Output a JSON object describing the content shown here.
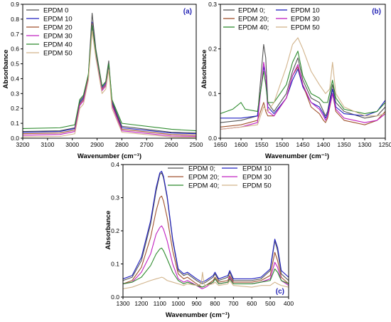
{
  "chart_data": [
    {
      "type": "line",
      "panel_label": "(a)",
      "xlabel": "Wavenumber (cm⁻¹)",
      "ylabel": "Absorbance",
      "xlim": [
        3200,
        2500
      ],
      "ylim": [
        0,
        0.9
      ],
      "xticks": [
        3200,
        3100,
        3000,
        2900,
        2800,
        2700,
        2600,
        2500
      ],
      "yticks": [
        0.0,
        0.1,
        0.2,
        0.3,
        0.4,
        0.5,
        0.6,
        0.7,
        0.8,
        0.9
      ],
      "legend_position": "top-left",
      "legend": [
        "EPDM 0",
        "EPDM 10",
        "EPDM 20",
        "EPDM 30",
        "EPDM 40",
        "EPDM 50"
      ],
      "series": [
        {
          "name": "EPDM 0",
          "color": "#555555",
          "x": [
            3200,
            3050,
            2990,
            2970,
            2955,
            2935,
            2920,
            2905,
            2880,
            2865,
            2853,
            2840,
            2800,
            2600,
            2500
          ],
          "y": [
            0.045,
            0.05,
            0.07,
            0.25,
            0.28,
            0.43,
            0.84,
            0.6,
            0.35,
            0.38,
            0.52,
            0.25,
            0.08,
            0.04,
            0.035
          ]
        },
        {
          "name": "EPDM 10",
          "color": "#2020c0",
          "x": [
            3200,
            3050,
            2990,
            2970,
            2955,
            2935,
            2920,
            2905,
            2880,
            2865,
            2853,
            2840,
            2800,
            2600,
            2500
          ],
          "y": [
            0.04,
            0.045,
            0.065,
            0.24,
            0.27,
            0.42,
            0.78,
            0.58,
            0.34,
            0.37,
            0.5,
            0.24,
            0.07,
            0.035,
            0.03
          ]
        },
        {
          "name": "EPDM 20",
          "color": "#a0522d",
          "x": [
            3200,
            3050,
            2990,
            2970,
            2955,
            2935,
            2920,
            2905,
            2880,
            2865,
            2853,
            2840,
            2800,
            2600,
            2500
          ],
          "y": [
            0.03,
            0.035,
            0.055,
            0.23,
            0.26,
            0.41,
            0.77,
            0.57,
            0.33,
            0.36,
            0.49,
            0.23,
            0.06,
            0.025,
            0.02
          ]
        },
        {
          "name": "EPDM 30",
          "color": "#c020c0",
          "x": [
            3200,
            3050,
            2990,
            2970,
            2955,
            2935,
            2920,
            2905,
            2880,
            2865,
            2853,
            2840,
            2800,
            2600,
            2500
          ],
          "y": [
            0.02,
            0.025,
            0.045,
            0.22,
            0.25,
            0.4,
            0.76,
            0.56,
            0.32,
            0.35,
            0.48,
            0.22,
            0.05,
            0.015,
            0.012
          ]
        },
        {
          "name": "EPDM 40",
          "color": "#2e8b2e",
          "x": [
            3200,
            3050,
            2990,
            2970,
            2955,
            2935,
            2920,
            2905,
            2880,
            2865,
            2853,
            2840,
            2800,
            2600,
            2500
          ],
          "y": [
            0.065,
            0.07,
            0.09,
            0.26,
            0.29,
            0.43,
            0.76,
            0.58,
            0.35,
            0.38,
            0.5,
            0.26,
            0.1,
            0.06,
            0.05
          ]
        },
        {
          "name": "EPDM 50",
          "color": "#d2b48c",
          "x": [
            3200,
            3050,
            2990,
            2970,
            2955,
            2935,
            2920,
            2905,
            2880,
            2865,
            2853,
            2840,
            2800,
            2600,
            2500
          ],
          "y": [
            0.01,
            0.012,
            0.03,
            0.2,
            0.23,
            0.39,
            0.72,
            0.54,
            0.3,
            0.33,
            0.46,
            0.2,
            0.04,
            0.008,
            0.005
          ]
        }
      ]
    },
    {
      "type": "line",
      "panel_label": "(b)",
      "xlabel": "Wavenumber (cm⁻¹)",
      "ylabel": "Absorbance",
      "xlim": [
        1650,
        1250
      ],
      "ylim": [
        0,
        0.3
      ],
      "xticks": [
        1650,
        1600,
        1550,
        1500,
        1450,
        1400,
        1350,
        1300,
        1250
      ],
      "yticks": [
        0.0,
        0.1,
        0.2,
        0.3
      ],
      "legend_position": "top-left",
      "legend": [
        "EPDM 0;",
        "EPDM 10",
        "EPDM 20;",
        "EPDM 30",
        "EPDM 40;",
        "EPDM 50"
      ],
      "series": [
        {
          "name": "EPDM 0",
          "color": "#555555",
          "x": [
            1650,
            1600,
            1560,
            1545,
            1540,
            1535,
            1520,
            1490,
            1475,
            1462,
            1450,
            1430,
            1410,
            1400,
            1395,
            1390,
            1378,
            1370,
            1350,
            1300,
            1270,
            1250
          ],
          "y": [
            0.035,
            0.04,
            0.05,
            0.21,
            0.18,
            0.08,
            0.06,
            0.1,
            0.15,
            0.18,
            0.13,
            0.09,
            0.08,
            0.06,
            0.05,
            0.06,
            0.12,
            0.08,
            0.06,
            0.045,
            0.05,
            0.07
          ]
        },
        {
          "name": "EPDM 10",
          "color": "#2020c0",
          "x": [
            1650,
            1600,
            1560,
            1545,
            1540,
            1535,
            1520,
            1490,
            1475,
            1462,
            1450,
            1430,
            1410,
            1400,
            1395,
            1390,
            1378,
            1370,
            1350,
            1300,
            1270,
            1250
          ],
          "y": [
            0.045,
            0.045,
            0.05,
            0.16,
            0.14,
            0.07,
            0.055,
            0.09,
            0.13,
            0.155,
            0.115,
            0.08,
            0.07,
            0.055,
            0.045,
            0.055,
            0.11,
            0.07,
            0.055,
            0.05,
            0.06,
            0.085
          ]
        },
        {
          "name": "EPDM 20",
          "color": "#a0522d",
          "x": [
            1650,
            1600,
            1560,
            1545,
            1540,
            1535,
            1520,
            1490,
            1475,
            1462,
            1450,
            1430,
            1410,
            1400,
            1395,
            1390,
            1378,
            1370,
            1350,
            1300,
            1270,
            1250
          ],
          "y": [
            0.025,
            0.03,
            0.04,
            0.08,
            0.06,
            0.05,
            0.05,
            0.09,
            0.14,
            0.16,
            0.12,
            0.07,
            0.055,
            0.04,
            0.035,
            0.045,
            0.1,
            0.06,
            0.04,
            0.03,
            0.04,
            0.06
          ]
        },
        {
          "name": "EPDM 30",
          "color": "#c020c0",
          "x": [
            1650,
            1600,
            1560,
            1545,
            1540,
            1535,
            1520,
            1490,
            1475,
            1462,
            1450,
            1430,
            1410,
            1400,
            1395,
            1390,
            1378,
            1370,
            1350,
            1300,
            1270,
            1250
          ],
          "y": [
            0.02,
            0.025,
            0.035,
            0.17,
            0.14,
            0.06,
            0.05,
            0.09,
            0.14,
            0.165,
            0.12,
            0.08,
            0.065,
            0.05,
            0.04,
            0.05,
            0.1,
            0.065,
            0.045,
            0.035,
            0.04,
            0.055
          ]
        },
        {
          "name": "EPDM 40",
          "color": "#2e8b2e",
          "x": [
            1650,
            1620,
            1600,
            1590,
            1560,
            1545,
            1540,
            1535,
            1520,
            1490,
            1475,
            1462,
            1450,
            1430,
            1410,
            1400,
            1390,
            1378,
            1370,
            1350,
            1300,
            1270,
            1250
          ],
          "y": [
            0.055,
            0.065,
            0.08,
            0.065,
            0.06,
            0.15,
            0.12,
            0.08,
            0.08,
            0.12,
            0.17,
            0.195,
            0.14,
            0.1,
            0.09,
            0.08,
            0.08,
            0.13,
            0.09,
            0.065,
            0.055,
            0.06,
            0.08
          ]
        },
        {
          "name": "EPDM 50",
          "color": "#d2b48c",
          "x": [
            1650,
            1600,
            1560,
            1545,
            1535,
            1520,
            1490,
            1475,
            1462,
            1450,
            1430,
            1410,
            1395,
            1385,
            1378,
            1370,
            1350,
            1300,
            1270,
            1250
          ],
          "y": [
            0.02,
            0.025,
            0.03,
            0.07,
            0.06,
            0.08,
            0.16,
            0.21,
            0.225,
            0.2,
            0.15,
            0.12,
            0.1,
            0.11,
            0.17,
            0.1,
            0.07,
            0.05,
            0.05,
            0.055
          ]
        }
      ]
    },
    {
      "type": "line",
      "panel_label": "(c)",
      "xlabel": "Wavenumber (cm⁻¹)",
      "ylabel": "Absorbance",
      "xlim": [
        1300,
        400
      ],
      "ylim": [
        0,
        0.4
      ],
      "xticks": [
        1300,
        1200,
        1100,
        1000,
        900,
        800,
        700,
        600,
        500,
        400
      ],
      "yticks": [
        0.0,
        0.1,
        0.2,
        0.3,
        0.4
      ],
      "legend_position": "top-right",
      "legend": [
        "EPDM 0;",
        "EPDM 10",
        "EPDM 20;",
        "EPDM 30",
        "EPDM 40;",
        "EPDM 50"
      ],
      "series": [
        {
          "name": "EPDM 0",
          "color": "#555555",
          "x": [
            1300,
            1250,
            1200,
            1150,
            1120,
            1100,
            1090,
            1080,
            1060,
            1030,
            1000,
            970,
            950,
            900,
            870,
            850,
            810,
            800,
            780,
            730,
            720,
            700,
            600,
            550,
            500,
            475,
            460,
            440,
            400
          ],
          "y": [
            0.05,
            0.06,
            0.11,
            0.22,
            0.32,
            0.37,
            0.375,
            0.36,
            0.3,
            0.17,
            0.08,
            0.065,
            0.07,
            0.05,
            0.04,
            0.045,
            0.06,
            0.07,
            0.05,
            0.06,
            0.075,
            0.05,
            0.05,
            0.055,
            0.08,
            0.17,
            0.14,
            0.07,
            0.05
          ]
        },
        {
          "name": "EPDM 10",
          "color": "#2020c0",
          "x": [
            1300,
            1250,
            1200,
            1150,
            1120,
            1100,
            1090,
            1080,
            1060,
            1030,
            1000,
            970,
            950,
            900,
            870,
            850,
            810,
            800,
            780,
            730,
            720,
            700,
            600,
            550,
            500,
            475,
            460,
            440,
            400
          ],
          "y": [
            0.055,
            0.065,
            0.12,
            0.23,
            0.33,
            0.375,
            0.38,
            0.365,
            0.305,
            0.175,
            0.085,
            0.07,
            0.075,
            0.055,
            0.045,
            0.05,
            0.065,
            0.075,
            0.055,
            0.065,
            0.08,
            0.055,
            0.055,
            0.06,
            0.085,
            0.175,
            0.15,
            0.08,
            0.06
          ]
        },
        {
          "name": "EPDM 20",
          "color": "#a0522d",
          "x": [
            1300,
            1250,
            1200,
            1150,
            1120,
            1100,
            1090,
            1080,
            1060,
            1030,
            1000,
            970,
            950,
            900,
            870,
            850,
            810,
            800,
            780,
            730,
            720,
            700,
            600,
            550,
            500,
            475,
            460,
            440,
            400
          ],
          "y": [
            0.04,
            0.05,
            0.09,
            0.18,
            0.26,
            0.3,
            0.305,
            0.29,
            0.24,
            0.14,
            0.07,
            0.055,
            0.06,
            0.04,
            0.03,
            0.035,
            0.05,
            0.06,
            0.045,
            0.05,
            0.065,
            0.045,
            0.045,
            0.05,
            0.065,
            0.135,
            0.11,
            0.06,
            0.04
          ]
        },
        {
          "name": "EPDM 30",
          "color": "#c020c0",
          "x": [
            1300,
            1250,
            1200,
            1150,
            1120,
            1100,
            1090,
            1080,
            1060,
            1030,
            1000,
            970,
            950,
            900,
            870,
            850,
            810,
            800,
            780,
            730,
            720,
            700,
            600,
            550,
            500,
            475,
            460,
            440,
            400
          ],
          "y": [
            0.04,
            0.045,
            0.075,
            0.13,
            0.19,
            0.21,
            0.215,
            0.205,
            0.17,
            0.1,
            0.055,
            0.045,
            0.05,
            0.035,
            0.025,
            0.03,
            0.045,
            0.055,
            0.04,
            0.045,
            0.06,
            0.04,
            0.04,
            0.045,
            0.055,
            0.105,
            0.09,
            0.05,
            0.035
          ]
        },
        {
          "name": "EPDM 40",
          "color": "#2e8b2e",
          "x": [
            1300,
            1250,
            1200,
            1150,
            1120,
            1100,
            1090,
            1080,
            1060,
            1030,
            1000,
            970,
            950,
            900,
            870,
            850,
            810,
            800,
            780,
            730,
            720,
            700,
            600,
            550,
            500,
            475,
            460,
            440,
            400
          ],
          "y": [
            0.04,
            0.045,
            0.06,
            0.095,
            0.13,
            0.145,
            0.148,
            0.14,
            0.115,
            0.075,
            0.05,
            0.04,
            0.045,
            0.035,
            0.03,
            0.035,
            0.045,
            0.055,
            0.04,
            0.045,
            0.055,
            0.04,
            0.04,
            0.045,
            0.05,
            0.085,
            0.075,
            0.05,
            0.04
          ]
        },
        {
          "name": "EPDM 50",
          "color": "#d2b48c",
          "x": [
            1300,
            1250,
            1200,
            1150,
            1120,
            1100,
            1090,
            1080,
            1060,
            1030,
            1000,
            970,
            950,
            900,
            875,
            868,
            860,
            850,
            810,
            800,
            780,
            730,
            720,
            700,
            600,
            550,
            500,
            475,
            460,
            440,
            400
          ],
          "y": [
            0.025,
            0.03,
            0.04,
            0.05,
            0.055,
            0.058,
            0.06,
            0.058,
            0.05,
            0.045,
            0.04,
            0.035,
            0.04,
            0.035,
            0.04,
            0.075,
            0.04,
            0.035,
            0.04,
            0.045,
            0.035,
            0.04,
            0.05,
            0.035,
            0.03,
            0.035,
            0.035,
            0.045,
            0.04,
            0.035,
            0.03
          ]
        }
      ]
    }
  ]
}
